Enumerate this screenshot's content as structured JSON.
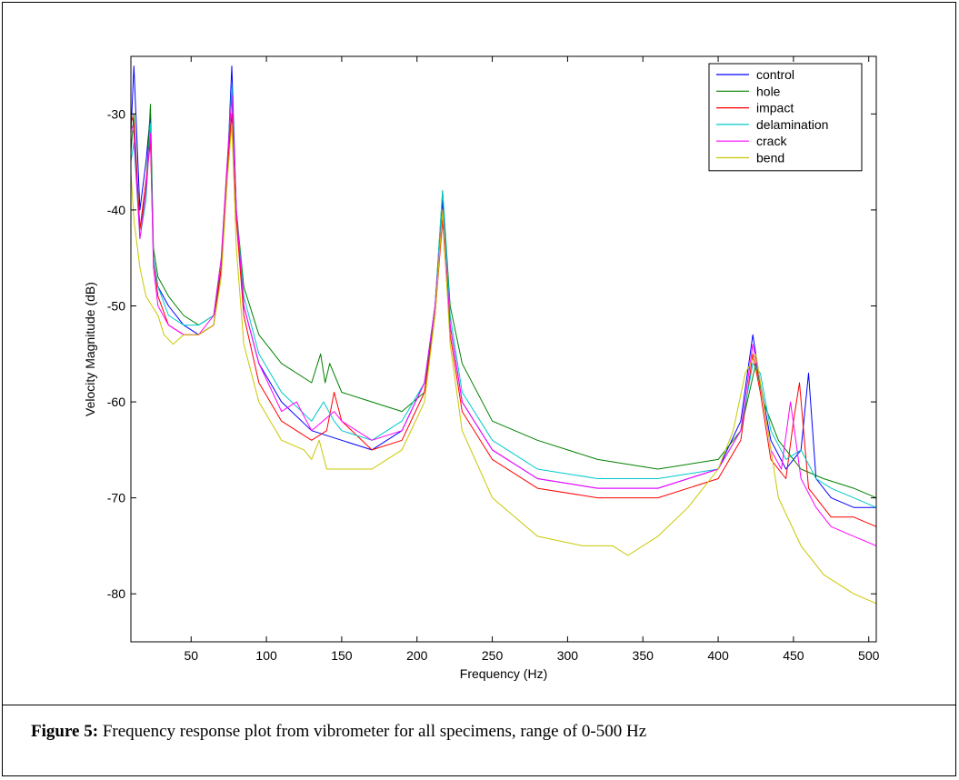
{
  "figure": {
    "caption_label": "Figure 5:",
    "caption_text": "Frequency response plot from vibrometer for all specimens, range of 0-500 Hz"
  },
  "chart_data": {
    "type": "line",
    "title": "",
    "xlabel": "Frequency (Hz)",
    "ylabel": "Velocity Magnitude (dB)",
    "xlim": [
      10,
      505
    ],
    "ylim": [
      -85,
      -24
    ],
    "xticks": [
      50,
      100,
      150,
      200,
      250,
      300,
      350,
      400,
      450,
      500
    ],
    "yticks": [
      -30,
      -40,
      -50,
      -60,
      -70,
      -80
    ],
    "grid": false,
    "legend_position": "top-right",
    "series": [
      {
        "name": "control",
        "color": "#0000ff",
        "x": [
          10,
          12,
          16,
          20,
          23,
          25,
          28,
          35,
          45,
          55,
          65,
          70,
          74,
          77,
          80,
          85,
          95,
          110,
          130,
          150,
          170,
          190,
          205,
          212,
          217,
          222,
          230,
          250,
          280,
          320,
          360,
          400,
          415,
          423,
          428,
          435,
          445,
          455,
          460,
          465,
          475,
          490,
          505
        ],
        "y": [
          -32,
          -25,
          -40,
          -35,
          -30,
          -45,
          -48,
          -50,
          -52,
          -53,
          -52,
          -46,
          -36,
          -25,
          -40,
          -50,
          -56,
          -60,
          -63,
          -64,
          -65,
          -63,
          -58,
          -50,
          -39,
          -52,
          -60,
          -65,
          -68,
          -69,
          -69,
          -67,
          -62,
          -53,
          -58,
          -64,
          -67,
          -65,
          -57,
          -68,
          -70,
          -71,
          -71
        ]
      },
      {
        "name": "hole",
        "color": "#008000",
        "x": [
          10,
          12,
          16,
          20,
          23,
          25,
          28,
          35,
          45,
          55,
          65,
          70,
          74,
          77,
          80,
          85,
          95,
          110,
          130,
          136,
          139,
          142,
          150,
          170,
          190,
          205,
          212,
          217,
          222,
          230,
          250,
          280,
          320,
          360,
          400,
          415,
          425,
          430,
          440,
          455,
          470,
          490,
          505
        ],
        "y": [
          -34,
          -30,
          -42,
          -38,
          -29,
          -44,
          -47,
          -49,
          -51,
          -52,
          -51,
          -46,
          -36,
          -28,
          -40,
          -48,
          -53,
          -56,
          -58,
          -55,
          -58,
          -56,
          -59,
          -60,
          -61,
          -59,
          -50,
          -38,
          -50,
          -56,
          -62,
          -64,
          -66,
          -67,
          -66,
          -63,
          -56,
          -60,
          -64,
          -67,
          -68,
          -69,
          -70
        ]
      },
      {
        "name": "impact",
        "color": "#ff0000",
        "x": [
          10,
          12,
          16,
          20,
          23,
          25,
          28,
          35,
          45,
          55,
          65,
          70,
          74,
          77,
          80,
          85,
          95,
          110,
          130,
          140,
          145,
          150,
          170,
          190,
          205,
          212,
          217,
          222,
          230,
          250,
          280,
          320,
          360,
          400,
          415,
          423,
          428,
          435,
          445,
          450,
          454,
          460,
          475,
          490,
          505
        ],
        "y": [
          -30,
          -31,
          -42,
          -37,
          -33,
          -45,
          -49,
          -52,
          -53,
          -53,
          -52,
          -46,
          -36,
          -30,
          -41,
          -51,
          -58,
          -62,
          -64,
          -63,
          -59,
          -62,
          -65,
          -64,
          -59,
          -51,
          -41,
          -53,
          -61,
          -66,
          -69,
          -70,
          -70,
          -68,
          -64,
          -55,
          -59,
          -66,
          -68,
          -62,
          -58,
          -69,
          -72,
          -72,
          -73
        ]
      },
      {
        "name": "delamination",
        "color": "#00c8c8",
        "x": [
          10,
          12,
          16,
          20,
          23,
          25,
          28,
          35,
          45,
          55,
          65,
          70,
          74,
          77,
          80,
          85,
          95,
          110,
          130,
          138,
          145,
          150,
          170,
          190,
          205,
          212,
          217,
          222,
          230,
          250,
          280,
          320,
          360,
          400,
          415,
          423,
          428,
          435,
          445,
          455,
          465,
          475,
          490,
          505
        ],
        "y": [
          -35,
          -33,
          -43,
          -39,
          -31,
          -45,
          -48,
          -51,
          -52,
          -52,
          -51,
          -45,
          -35,
          -27,
          -40,
          -49,
          -55,
          -59,
          -62,
          -60,
          -62,
          -63,
          -64,
          -62,
          -58,
          -50,
          -38,
          -51,
          -59,
          -64,
          -67,
          -68,
          -68,
          -67,
          -63,
          -56,
          -57,
          -63,
          -66,
          -65,
          -68,
          -69,
          -70,
          -71
        ]
      },
      {
        "name": "crack",
        "color": "#ff00ff",
        "x": [
          10,
          12,
          16,
          20,
          23,
          25,
          28,
          35,
          45,
          55,
          65,
          70,
          74,
          77,
          80,
          85,
          95,
          110,
          120,
          130,
          145,
          150,
          170,
          190,
          205,
          212,
          217,
          222,
          230,
          250,
          280,
          320,
          360,
          400,
          415,
          423,
          428,
          435,
          442,
          448,
          455,
          465,
          475,
          490,
          505
        ],
        "y": [
          -31,
          -32,
          -43,
          -38,
          -32,
          -46,
          -50,
          -52,
          -53,
          -53,
          -51,
          -45,
          -35,
          -28,
          -40,
          -50,
          -56,
          -61,
          -60,
          -63,
          -61,
          -62,
          -64,
          -63,
          -58,
          -50,
          -40,
          -52,
          -60,
          -65,
          -68,
          -69,
          -69,
          -67,
          -63,
          -54,
          -58,
          -65,
          -67,
          -60,
          -68,
          -71,
          -73,
          -74,
          -75
        ]
      },
      {
        "name": "bend",
        "color": "#c8c800",
        "x": [
          10,
          12,
          16,
          20,
          24,
          28,
          32,
          38,
          45,
          55,
          65,
          70,
          74,
          77,
          80,
          85,
          95,
          110,
          125,
          130,
          135,
          140,
          150,
          170,
          190,
          205,
          212,
          217,
          222,
          230,
          250,
          280,
          310,
          330,
          340,
          360,
          380,
          400,
          410,
          418,
          425,
          432,
          440,
          455,
          470,
          490,
          505
        ],
        "y": [
          -36,
          -41,
          -46,
          -49,
          -50,
          -51,
          -53,
          -54,
          -53,
          -53,
          -52,
          -47,
          -37,
          -31,
          -44,
          -54,
          -60,
          -64,
          -65,
          -66,
          -64,
          -67,
          -67,
          -67,
          -65,
          -60,
          -51,
          -40,
          -54,
          -63,
          -70,
          -74,
          -75,
          -75,
          -76,
          -74,
          -71,
          -67,
          -63,
          -57,
          -55,
          -62,
          -70,
          -75,
          -78,
          -80,
          -81
        ]
      }
    ]
  }
}
